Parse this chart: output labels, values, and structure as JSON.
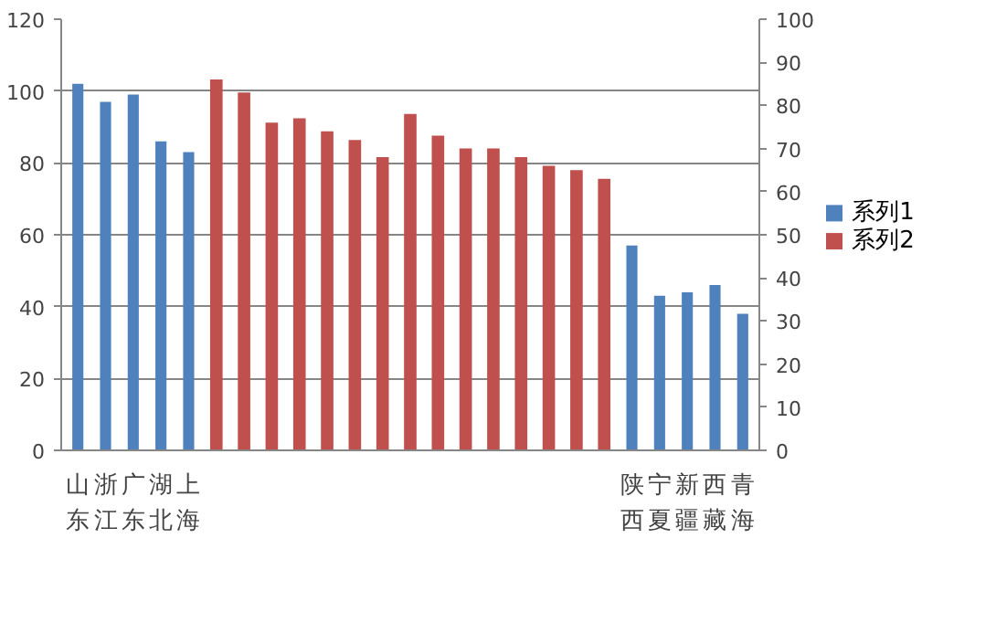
{
  "chart_data": {
    "type": "bar",
    "categories": [
      "山东",
      "浙江",
      "广东",
      "湖北",
      "上海",
      null,
      null,
      null,
      null,
      null,
      null,
      null,
      null,
      null,
      null,
      null,
      null,
      null,
      null,
      null,
      "陕西",
      "宁夏",
      "新疆",
      "西藏",
      "青海"
    ],
    "series": [
      {
        "name": "系列1",
        "color": "#4f81bd",
        "values": [
          102,
          97,
          99,
          86,
          83,
          null,
          null,
          null,
          null,
          null,
          null,
          null,
          null,
          null,
          null,
          null,
          null,
          null,
          null,
          null,
          57,
          43,
          44,
          46,
          38
        ]
      },
      {
        "name": "系列2",
        "color": "#c0504d",
        "axis": "y2",
        "values": [
          null,
          null,
          null,
          null,
          null,
          86,
          83,
          76,
          77,
          74,
          72,
          68,
          78,
          73,
          70,
          70,
          68,
          66,
          65,
          63,
          null,
          null,
          null,
          null,
          null
        ]
      }
    ],
    "ylim": [
      0,
      120
    ],
    "yticks": [
      0,
      20,
      40,
      60,
      80,
      100,
      120
    ],
    "y2lim": [
      0,
      100
    ],
    "y2ticks": [
      0,
      10,
      20,
      30,
      40,
      50,
      60,
      70,
      80,
      90,
      100
    ],
    "grid": "y",
    "legend": "right"
  }
}
